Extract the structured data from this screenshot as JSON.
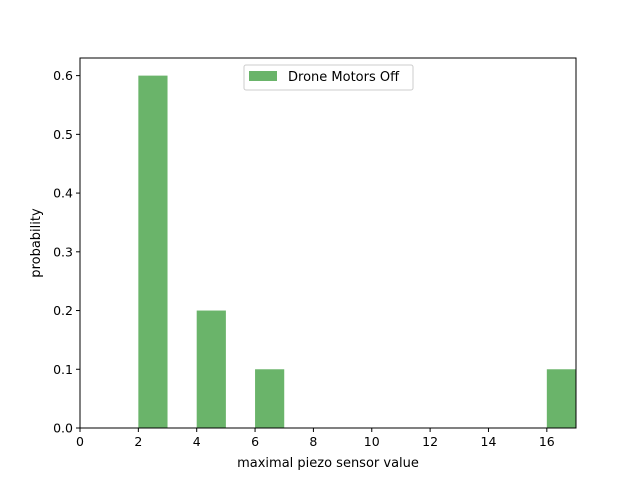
{
  "chart_data": {
    "type": "bar",
    "bars": [
      {
        "x0": 2,
        "x1": 3,
        "value": 0.6
      },
      {
        "x0": 4,
        "x1": 5,
        "value": 0.2
      },
      {
        "x0": 6,
        "x1": 7,
        "value": 0.1
      },
      {
        "x0": 16,
        "x1": 17,
        "value": 0.1
      }
    ],
    "series": [
      {
        "name": "Drone Motors Off"
      }
    ],
    "xlabel": "maximal piezo sensor value",
    "ylabel": "probability",
    "xlim": [
      0,
      17
    ],
    "ylim": [
      0,
      0.6
    ],
    "xticks": [
      0,
      2,
      4,
      6,
      8,
      10,
      12,
      14,
      16
    ],
    "yticks": [
      0.0,
      0.1,
      0.2,
      0.3,
      0.4,
      0.5,
      0.6
    ],
    "xtick_labels": [
      "0",
      "2",
      "4",
      "6",
      "8",
      "10",
      "12",
      "14",
      "16"
    ],
    "ytick_labels": [
      "0.0",
      "0.1",
      "0.2",
      "0.3",
      "0.4",
      "0.5",
      "0.6"
    ],
    "grid": false,
    "legend_position": "top-center",
    "bar_color": "#6ab46a"
  }
}
